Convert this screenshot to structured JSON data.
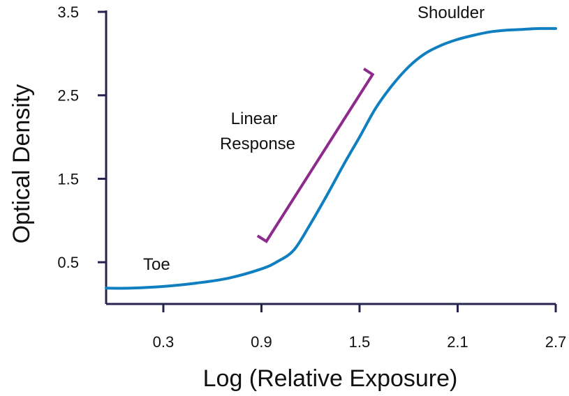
{
  "chart_data": {
    "type": "line",
    "title": "",
    "xlabel": "Log (Relative Exposure)",
    "ylabel": "Optical Density",
    "xlim": [
      -0.05,
      2.7
    ],
    "ylim": [
      0.0,
      3.5
    ],
    "x_ticks": [
      "0.3",
      "0.9",
      "1.5",
      "2.1",
      "2.7"
    ],
    "y_ticks": [
      "0.5",
      "1.5",
      "2.5",
      "3.5"
    ],
    "grid": false,
    "series": [
      {
        "x": [
          -0.05,
          0.1,
          0.3,
          0.5,
          0.7,
          0.9,
          1.0,
          1.1,
          1.2,
          1.3,
          1.4,
          1.5,
          1.6,
          1.7,
          1.8,
          1.9,
          2.0,
          2.1,
          2.2,
          2.3,
          2.4,
          2.5,
          2.6,
          2.7
        ],
        "y": [
          0.19,
          0.19,
          0.21,
          0.25,
          0.31,
          0.42,
          0.51,
          0.65,
          0.96,
          1.3,
          1.66,
          2.0,
          2.35,
          2.62,
          2.84,
          3.0,
          3.1,
          3.17,
          3.22,
          3.26,
          3.28,
          3.29,
          3.3,
          3.3
        ]
      }
    ],
    "annotations": {
      "toe": "Toe",
      "linear_line1": "Linear",
      "linear_line2": "Response",
      "shoulder": "Shoulder"
    },
    "colors": {
      "axis": "#26234f",
      "curve": "#0f7fc0",
      "bracket": "#8e2a8c"
    },
    "bracket": {
      "start": [
        0.93,
        0.75
      ],
      "end": [
        1.58,
        2.75
      ]
    }
  }
}
